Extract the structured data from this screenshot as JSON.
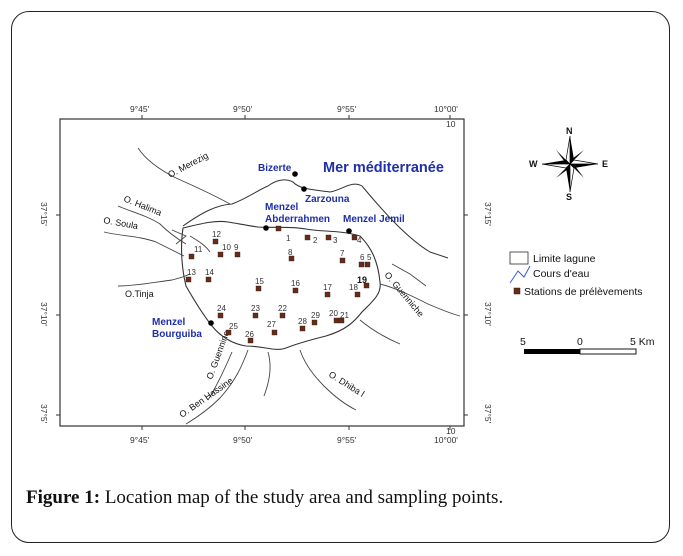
{
  "map": {
    "lon_ticks": [
      "9°45'",
      "9°50'",
      "9°55'",
      "10°00'"
    ],
    "lat_ticks": [
      "37°15'",
      "37°10'",
      "37°5'"
    ],
    "corner_mark": "10",
    "sea_label": "Mer méditerranée",
    "towns": [
      {
        "id": "bizerte",
        "name": "Bizerte",
        "has_dot": true
      },
      {
        "id": "zarzouna",
        "name": "Zarzouna",
        "has_dot": true
      },
      {
        "id": "menzel-abderrahmen",
        "name": "Menzel Abderrahmen",
        "has_dot": true
      },
      {
        "id": "menzel-jemil",
        "name": "Menzel Jemil",
        "has_dot": true
      },
      {
        "id": "menzel-bourguiba",
        "name": "Menzel Bourguiba",
        "has_dot": true
      }
    ],
    "rivers": [
      "O. Merezig",
      "O. Halima",
      "O. Soula",
      "O.Tinja",
      "O. Guennine",
      "O. Ben Hassine",
      "O. Dhiba l",
      "O. Guenniche"
    ],
    "stations": [
      "1",
      "2",
      "3",
      "4",
      "5",
      "6",
      "7",
      "8",
      "9",
      "10",
      "11",
      "12",
      "13",
      "14",
      "15",
      "16",
      "17",
      "18",
      "19",
      "20",
      "21",
      "22",
      "23",
      "24",
      "25",
      "26",
      "27",
      "28",
      "29"
    ],
    "highlighted_station": "19"
  },
  "legend": {
    "lagoon": "Limite lagune",
    "streams": "Cours d'eau",
    "stations": "Stations de prélèvements"
  },
  "compass": {
    "n": "N",
    "s": "S",
    "e": "E",
    "w": "W"
  },
  "scale_bar": {
    "left": "5",
    "mid": "0",
    "right": "5 Km"
  },
  "caption": {
    "label": "Figure 1:",
    "text": " Location map of the study area and sampling points."
  },
  "colors": {
    "town_label": "#1f2fa8",
    "station_fill": "#6b2a15",
    "line": "#333333"
  }
}
